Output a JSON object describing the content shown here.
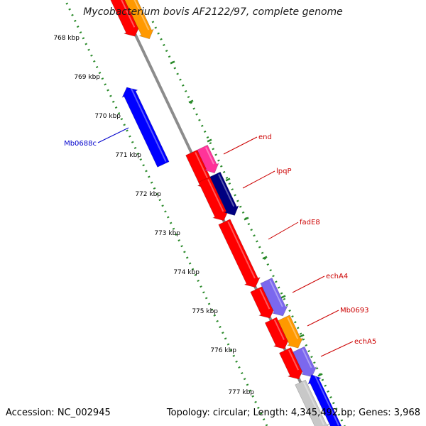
{
  "title": "Mycobacterium bovis AF2122/97, complete genome",
  "footer": {
    "accession": "Accession: NC_002945",
    "stats": "Topology: circular; Length: 4,345,492 bp; Genes: 3,968"
  },
  "colors": {
    "backbone": "#8c8c8c",
    "tick_track": "#2a8a2a",
    "red": "#ff0000",
    "orange": "#ff9900",
    "blue": "#0000ff",
    "navy": "#000080",
    "magenta": "#ff3399",
    "purple": "#7b68ee",
    "grey": "#c8c8c8",
    "label_forward": "#cc0000",
    "label_reverse": "#0000cc"
  },
  "kbp_ticks": [
    "768 kbp",
    "769 kbp",
    "770 kbp",
    "771 kbp",
    "772 kbp",
    "773 kbp",
    "774 kbp",
    "775 kbp",
    "776 kbp",
    "777 kbp"
  ],
  "gene_labels": [
    {
      "text": "end",
      "strand": "forward"
    },
    {
      "text": "lpqP",
      "strand": "forward"
    },
    {
      "text": "fadE8",
      "strand": "forward"
    },
    {
      "text": "echA4",
      "strand": "forward"
    },
    {
      "text": "Mb0693",
      "strand": "forward"
    },
    {
      "text": "echA5",
      "strand": "forward"
    },
    {
      "text": "Mb0688c",
      "strand": "reverse"
    }
  ],
  "features": [
    {
      "name": "gene-top-red",
      "color": "red"
    },
    {
      "name": "gene-top-orange",
      "color": "orange"
    },
    {
      "name": "gene-mb0688c",
      "color": "blue"
    },
    {
      "name": "gene-red-a",
      "color": "red"
    },
    {
      "name": "gene-end",
      "color": "magenta"
    },
    {
      "name": "gene-red-b",
      "color": "red"
    },
    {
      "name": "gene-lpqp",
      "color": "navy"
    },
    {
      "name": "gene-fade8",
      "color": "red"
    },
    {
      "name": "gene-red-c",
      "color": "red"
    },
    {
      "name": "gene-echa4",
      "color": "purple"
    },
    {
      "name": "gene-red-d",
      "color": "red"
    },
    {
      "name": "gene-mb0693",
      "color": "orange"
    },
    {
      "name": "gene-red-e",
      "color": "red"
    },
    {
      "name": "gene-echa5",
      "color": "purple"
    },
    {
      "name": "gene-bottom-grey",
      "color": "grey"
    },
    {
      "name": "gene-bottom-blue",
      "color": "blue"
    }
  ]
}
